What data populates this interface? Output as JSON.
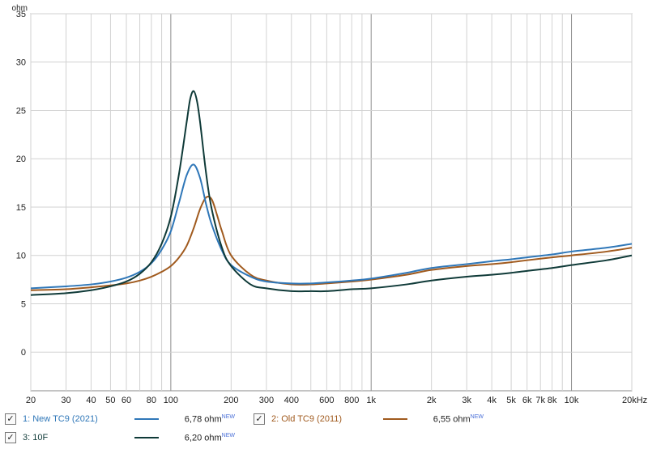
{
  "chart_data": {
    "type": "line",
    "x_scale": "log",
    "y_unit_label": "ohm",
    "xlim": [
      20,
      20000
    ],
    "ylim": [
      -4,
      35
    ],
    "y_ticks": [
      0,
      5,
      10,
      15,
      20,
      25,
      30,
      35
    ],
    "x_tick_labels": [
      {
        "v": 20,
        "t": "20"
      },
      {
        "v": 30,
        "t": "30"
      },
      {
        "v": 40,
        "t": "40"
      },
      {
        "v": 50,
        "t": "50"
      },
      {
        "v": 60,
        "t": "60"
      },
      {
        "v": 80,
        "t": "80"
      },
      {
        "v": 100,
        "t": "100"
      },
      {
        "v": 200,
        "t": "200"
      },
      {
        "v": 300,
        "t": "300"
      },
      {
        "v": 400,
        "t": "400"
      },
      {
        "v": 600,
        "t": "600"
      },
      {
        "v": 800,
        "t": "800"
      },
      {
        "v": 1000,
        "t": "1k"
      },
      {
        "v": 2000,
        "t": "2k"
      },
      {
        "v": 3000,
        "t": "3k"
      },
      {
        "v": 4000,
        "t": "4k"
      },
      {
        "v": 5000,
        "t": "5k"
      },
      {
        "v": 6000,
        "t": "6k"
      },
      {
        "v": 7000,
        "t": "7k"
      },
      {
        "v": 8000,
        "t": "8k"
      },
      {
        "v": 10000,
        "t": "10k"
      },
      {
        "v": 20000,
        "t": "20kHz"
      }
    ],
    "grid": true,
    "series": [
      {
        "name": "1: New TC9 (2021)",
        "color": "#2f77b8",
        "readout": "6,78 ohm",
        "points": [
          [
            20,
            6.6
          ],
          [
            30,
            6.8
          ],
          [
            40,
            7.0
          ],
          [
            50,
            7.3
          ],
          [
            60,
            7.7
          ],
          [
            70,
            8.3
          ],
          [
            80,
            9.2
          ],
          [
            90,
            10.6
          ],
          [
            100,
            12.5
          ],
          [
            110,
            15.5
          ],
          [
            120,
            18.3
          ],
          [
            130,
            19.4
          ],
          [
            140,
            18.0
          ],
          [
            150,
            15.3
          ],
          [
            160,
            13.2
          ],
          [
            180,
            10.5
          ],
          [
            200,
            9.0
          ],
          [
            250,
            7.8
          ],
          [
            300,
            7.3
          ],
          [
            400,
            7.1
          ],
          [
            500,
            7.1
          ],
          [
            600,
            7.2
          ],
          [
            800,
            7.4
          ],
          [
            1000,
            7.6
          ],
          [
            1500,
            8.2
          ],
          [
            2000,
            8.7
          ],
          [
            3000,
            9.1
          ],
          [
            4000,
            9.4
          ],
          [
            5000,
            9.6
          ],
          [
            6000,
            9.8
          ],
          [
            8000,
            10.1
          ],
          [
            10000,
            10.4
          ],
          [
            15000,
            10.8
          ],
          [
            20000,
            11.2
          ]
        ]
      },
      {
        "name": "2: Old TC9 (2011)",
        "color": "#a05a1e",
        "readout": "6,55 ohm",
        "points": [
          [
            20,
            6.4
          ],
          [
            30,
            6.5
          ],
          [
            40,
            6.7
          ],
          [
            50,
            6.9
          ],
          [
            60,
            7.1
          ],
          [
            70,
            7.4
          ],
          [
            80,
            7.8
          ],
          [
            90,
            8.3
          ],
          [
            100,
            8.9
          ],
          [
            110,
            9.8
          ],
          [
            120,
            11.0
          ],
          [
            130,
            12.8
          ],
          [
            140,
            14.8
          ],
          [
            150,
            16.0
          ],
          [
            160,
            15.8
          ],
          [
            170,
            14.2
          ],
          [
            180,
            12.5
          ],
          [
            200,
            10.0
          ],
          [
            250,
            8.0
          ],
          [
            300,
            7.4
          ],
          [
            400,
            7.0
          ],
          [
            500,
            7.0
          ],
          [
            600,
            7.1
          ],
          [
            800,
            7.3
          ],
          [
            1000,
            7.5
          ],
          [
            1500,
            8.0
          ],
          [
            2000,
            8.5
          ],
          [
            3000,
            8.9
          ],
          [
            4000,
            9.1
          ],
          [
            5000,
            9.3
          ],
          [
            6000,
            9.5
          ],
          [
            8000,
            9.8
          ],
          [
            10000,
            10.0
          ],
          [
            15000,
            10.4
          ],
          [
            20000,
            10.8
          ]
        ]
      },
      {
        "name": "3: 10F",
        "color": "#0f3a38",
        "readout": "6,20 ohm",
        "points": [
          [
            20,
            5.9
          ],
          [
            30,
            6.1
          ],
          [
            40,
            6.4
          ],
          [
            50,
            6.8
          ],
          [
            60,
            7.3
          ],
          [
            70,
            8.1
          ],
          [
            80,
            9.3
          ],
          [
            90,
            11.2
          ],
          [
            100,
            14.0
          ],
          [
            110,
            18.5
          ],
          [
            120,
            23.8
          ],
          [
            125,
            26.2
          ],
          [
            130,
            27.0
          ],
          [
            135,
            26.0
          ],
          [
            140,
            23.8
          ],
          [
            150,
            18.5
          ],
          [
            160,
            14.8
          ],
          [
            180,
            10.8
          ],
          [
            200,
            8.9
          ],
          [
            250,
            7.0
          ],
          [
            300,
            6.6
          ],
          [
            400,
            6.3
          ],
          [
            500,
            6.3
          ],
          [
            600,
            6.3
          ],
          [
            800,
            6.5
          ],
          [
            1000,
            6.6
          ],
          [
            1500,
            7.0
          ],
          [
            2000,
            7.4
          ],
          [
            3000,
            7.8
          ],
          [
            4000,
            8.0
          ],
          [
            5000,
            8.2
          ],
          [
            6000,
            8.4
          ],
          [
            8000,
            8.7
          ],
          [
            10000,
            9.0
          ],
          [
            15000,
            9.5
          ],
          [
            20000,
            10.0
          ]
        ]
      }
    ]
  },
  "legend": {
    "check_mark": "✓",
    "new_superscript": "NEW",
    "items": [
      {
        "label": "1: New TC9 (2021)",
        "value": "6,78 ohm",
        "color": "#2f77b8"
      },
      {
        "label": "2: Old TC9 (2011)",
        "value": "6,55 ohm",
        "color": "#a05a1e"
      },
      {
        "label": "3: 10F",
        "value": "6,20 ohm",
        "color": "#0f3a38"
      }
    ]
  }
}
